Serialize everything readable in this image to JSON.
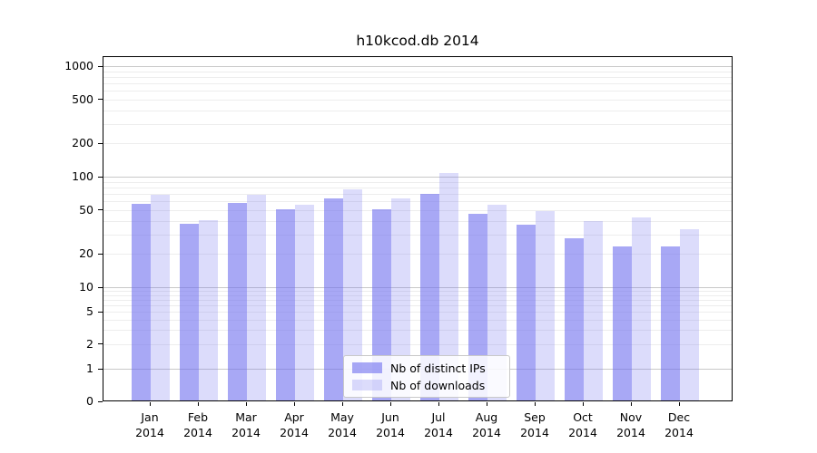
{
  "chart_data": {
    "type": "bar",
    "title": "h10kcod.db 2014",
    "categories": [
      {
        "month": "Jan",
        "year": "2014"
      },
      {
        "month": "Feb",
        "year": "2014"
      },
      {
        "month": "Mar",
        "year": "2014"
      },
      {
        "month": "Apr",
        "year": "2014"
      },
      {
        "month": "May",
        "year": "2014"
      },
      {
        "month": "Jun",
        "year": "2014"
      },
      {
        "month": "Jul",
        "year": "2014"
      },
      {
        "month": "Aug",
        "year": "2014"
      },
      {
        "month": "Sep",
        "year": "2014"
      },
      {
        "month": "Oct",
        "year": "2014"
      },
      {
        "month": "Nov",
        "year": "2014"
      },
      {
        "month": "Dec",
        "year": "2014"
      }
    ],
    "series": [
      {
        "name": "Nb of distinct IPs",
        "color": "rgba(110,110,238,0.60)",
        "values": [
          56,
          37,
          57,
          50,
          62,
          50,
          68,
          45,
          36,
          27,
          23,
          23
        ]
      },
      {
        "name": "Nb of downloads",
        "color": "rgba(110,110,238,0.24)",
        "values": [
          67,
          40,
          67,
          55,
          75,
          62,
          105,
          55,
          48,
          39,
          42,
          33
        ]
      }
    ],
    "y_ticks": [
      1000,
      500,
      200,
      100,
      50,
      20,
      10,
      5,
      2,
      1,
      0
    ],
    "y_scale": "symlog",
    "ylim": [
      0,
      1300
    ],
    "grid": true,
    "legend_position": "lower center",
    "colors": {
      "major_grid": "#c9c9c9",
      "minor_grid": "#ededed",
      "axis": "#000000"
    }
  }
}
